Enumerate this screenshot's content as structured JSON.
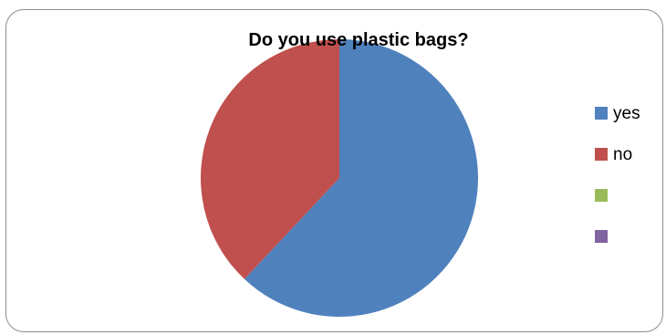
{
  "chart_data": {
    "type": "pie",
    "title": "Do you use plastic bags?",
    "categories": [
      "yes",
      "no",
      "",
      ""
    ],
    "values": [
      62,
      38,
      0,
      0
    ],
    "colors": [
      "#4F81BD",
      "#C0504D",
      "#9BBB59",
      "#8064A2"
    ],
    "legend_position": "right"
  }
}
